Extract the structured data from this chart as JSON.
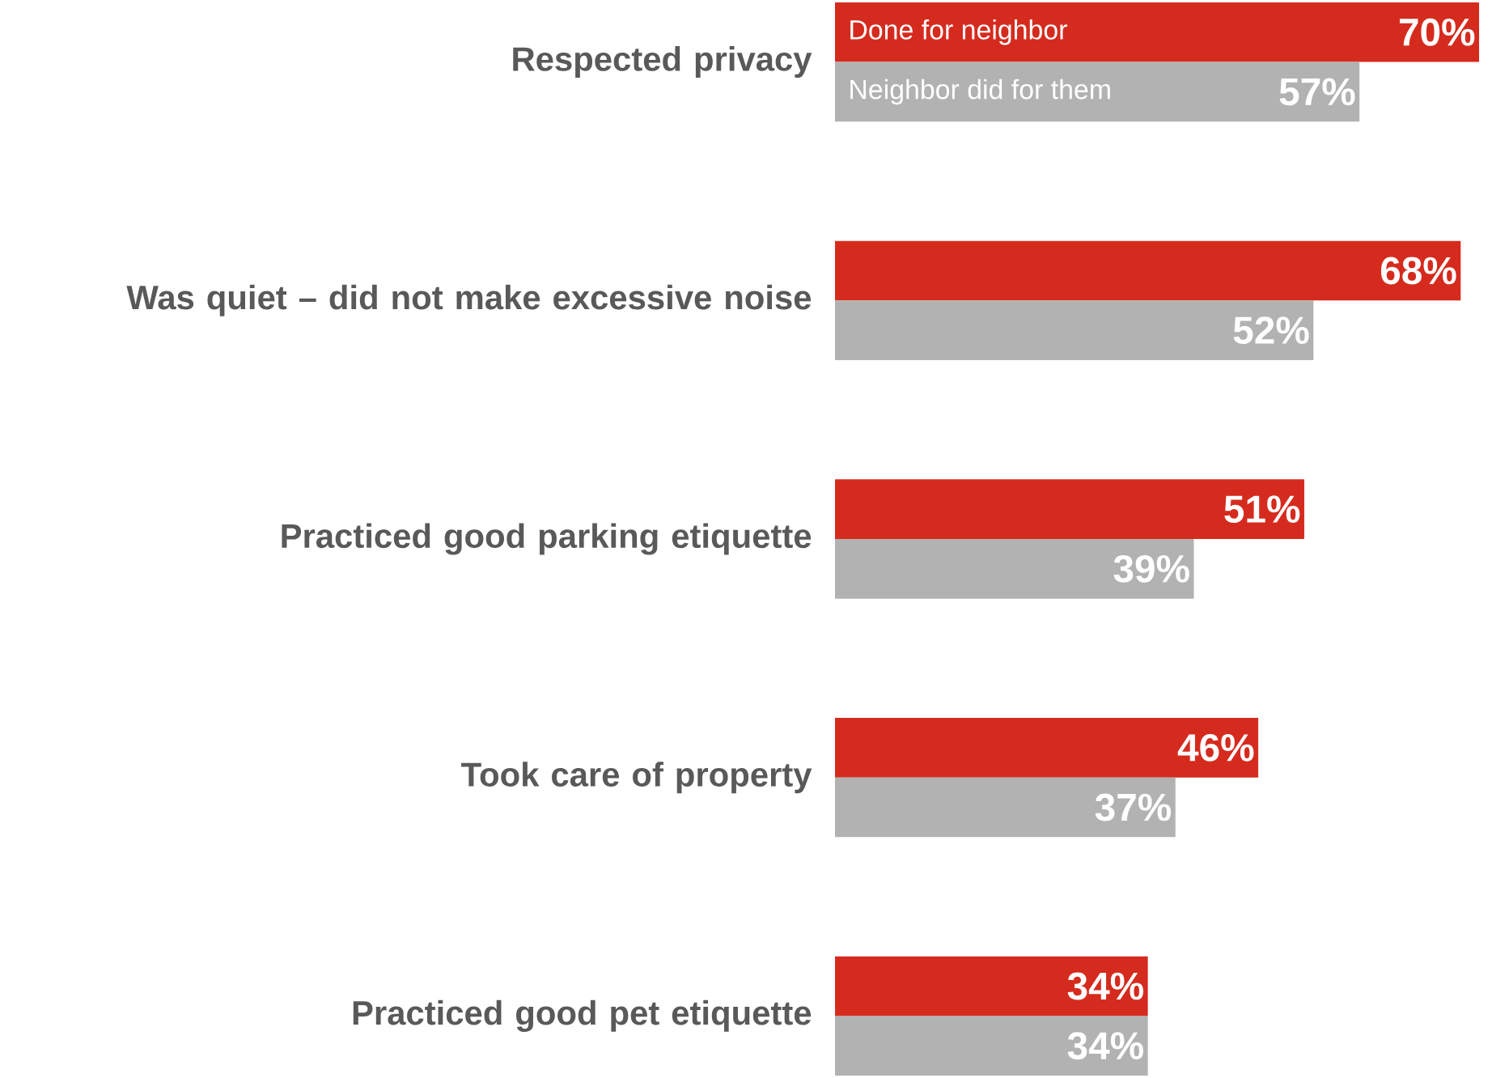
{
  "chart_data": {
    "type": "bar",
    "orientation": "horizontal",
    "categories": [
      "Respected privacy",
      "Was quiet – did not make excessive noise",
      "Practiced good parking etiquette",
      "Took care of property",
      "Practiced good pet etiquette"
    ],
    "series": [
      {
        "name": "Done for neighbor",
        "color": "#d52b1e",
        "values": [
          70,
          68,
          51,
          46,
          34
        ],
        "value_labels": [
          "70%",
          "68%",
          "51%",
          "46%",
          "34%"
        ]
      },
      {
        "name": "Neighbor did for them",
        "color": "#b2b2b2",
        "values": [
          57,
          52,
          39,
          37,
          34
        ],
        "value_labels": [
          "57%",
          "52%",
          "39%",
          "37%",
          "34%"
        ]
      }
    ]
  }
}
